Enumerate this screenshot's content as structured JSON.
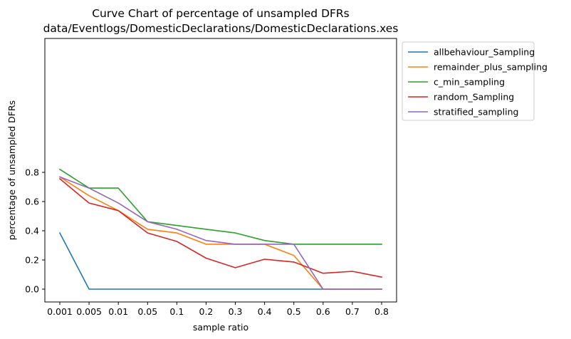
{
  "chart_data": {
    "type": "line",
    "title": "Curve Chart of percentage of unsampled DFRs",
    "subtitle": "data/Eventlogs/DomesticDeclarations/DomesticDeclarations.xes",
    "xlabel": "sample ratio",
    "ylabel": "percentage of unsampled DFRs",
    "categories": [
      "0.001",
      "0.005",
      "0.01",
      "0.05",
      "0.1",
      "0.2",
      "0.3",
      "0.4",
      "0.5",
      "0.6",
      "0.7",
      "0.8"
    ],
    "yticks": [
      "0.0",
      "0.2",
      "0.4",
      "0.6",
      "0.8"
    ],
    "ylim": [
      -0.04,
      0.86
    ],
    "grid": false,
    "legend_position": "outside-top-right",
    "series": [
      {
        "name": "allbehaviour_Sampling",
        "color": "#1f77b4",
        "values": [
          0.385,
          0.0,
          0.0,
          0.0,
          0.0,
          0.0,
          0.0,
          0.0,
          0.0,
          0.0,
          0.0,
          0.0
        ]
      },
      {
        "name": "remainder_plus_sampling",
        "color": "#ff7f0e",
        "values": [
          0.769,
          0.64,
          0.538,
          0.41,
          0.385,
          0.308,
          0.308,
          0.308,
          0.231,
          0.0,
          0.0,
          0.0
        ]
      },
      {
        "name": "c_min_sampling",
        "color": "#2ca02c",
        "values": [
          0.821,
          0.692,
          0.692,
          0.462,
          0.436,
          0.41,
          0.385,
          0.333,
          0.308,
          0.308,
          0.308,
          0.308
        ]
      },
      {
        "name": "random_Sampling",
        "color": "#d62728",
        "values": [
          0.756,
          0.59,
          0.538,
          0.385,
          0.327,
          0.212,
          0.147,
          0.205,
          0.186,
          0.109,
          0.122,
          0.083
        ]
      },
      {
        "name": "stratified_sampling",
        "color": "#9467bd",
        "values": [
          0.769,
          0.692,
          0.59,
          0.462,
          0.41,
          0.333,
          0.308,
          0.308,
          0.308,
          0.0,
          0.0,
          0.0
        ]
      }
    ]
  }
}
